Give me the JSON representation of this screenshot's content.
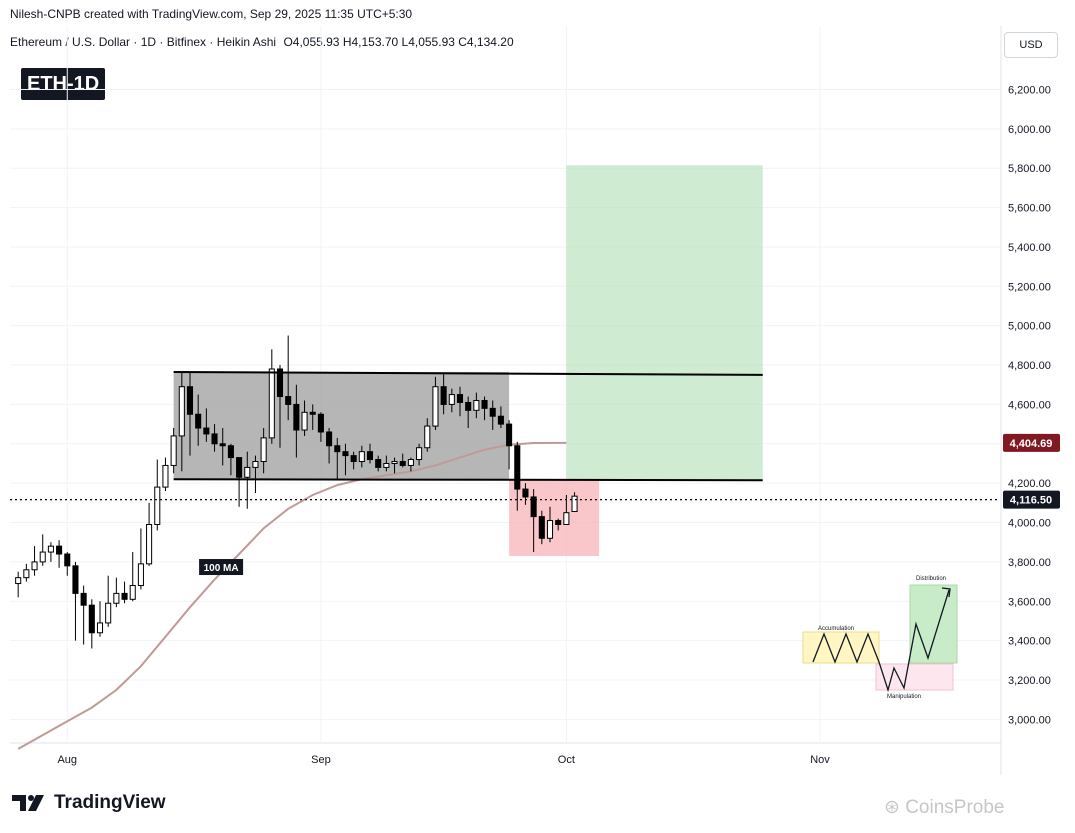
{
  "header": {
    "created_by": "Nilesh-CNPB created with TradingView.com, Sep 29, 2025 11:35 UTC+5:30",
    "symbol_line": "Ethereum / U.S. Dollar · 1D · Bitfinex · Heikin Ashi",
    "ohlc": "O4,055.93 H4,153.70 L4,055.93 C4,134.20",
    "currency_button": "USD",
    "chart_tag": "ETH-1D"
  },
  "footer": {
    "brand": "TradingView",
    "watermark": "CoinsProbe"
  },
  "colors": {
    "up": "#ffffff",
    "down": "#000000",
    "range_box": "#9e9e9e",
    "target_zone": "#b5e0b8",
    "stop_zone": "#f7b3b8",
    "ma_line": "#c09a96",
    "ma_label": "#801922"
  },
  "chart_data": {
    "type": "candlestick",
    "title": "",
    "xlabel": "",
    "ylabel": "",
    "ylim": [
      2880,
      6370
    ],
    "y_ticks": [
      3000,
      3200,
      3400,
      3600,
      3800,
      4000,
      4200,
      4400,
      4600,
      4800,
      5000,
      5200,
      5400,
      5600,
      5800,
      6000,
      6200
    ],
    "y_tick_labels": [
      "3,000.00",
      "3,200.00",
      "3,400.00",
      "3,600.00",
      "3,800.00",
      "4,000.00",
      "4,200.00",
      "4,400.00",
      "4,600.00",
      "4,800.00",
      "5,000.00",
      "5,200.00",
      "5,400.00",
      "5,600.00",
      "5,800.00",
      "6,000.00",
      "6,200.00"
    ],
    "x_ticks": [
      {
        "label": "Aug",
        "day": 0
      },
      {
        "label": "Sep",
        "day": 31
      },
      {
        "label": "Oct",
        "day": 61
      },
      {
        "label": "Nov",
        "day": 92
      }
    ],
    "x_range_days": [
      -7,
      114
    ],
    "last_price": 4116.5,
    "last_price_label": "4,116.50",
    "ma_value": 4404.69,
    "ma_value_label": "4,404.69",
    "ma_name": "100 MA",
    "candles": [
      {
        "d": -6,
        "o": 3690,
        "c": 3720,
        "h": 3750,
        "l": 3620
      },
      {
        "d": -5,
        "o": 3720,
        "c": 3760,
        "h": 3790,
        "l": 3700
      },
      {
        "d": -4,
        "o": 3760,
        "c": 3800,
        "h": 3880,
        "l": 3730
      },
      {
        "d": -3,
        "o": 3800,
        "c": 3850,
        "h": 3940,
        "l": 3780
      },
      {
        "d": -2,
        "o": 3850,
        "c": 3880,
        "h": 3900,
        "l": 3800
      },
      {
        "d": -1,
        "o": 3880,
        "c": 3840,
        "h": 3910,
        "l": 3770
      },
      {
        "d": 0,
        "o": 3840,
        "c": 3780,
        "h": 3850,
        "l": 3730
      },
      {
        "d": 1,
        "o": 3780,
        "c": 3640,
        "h": 3800,
        "l": 3400
      },
      {
        "d": 2,
        "o": 3640,
        "c": 3580,
        "h": 3680,
        "l": 3380
      },
      {
        "d": 3,
        "o": 3580,
        "c": 3440,
        "h": 3610,
        "l": 3360
      },
      {
        "d": 4,
        "o": 3440,
        "c": 3490,
        "h": 3600,
        "l": 3420
      },
      {
        "d": 5,
        "o": 3490,
        "c": 3590,
        "h": 3730,
        "l": 3470
      },
      {
        "d": 6,
        "o": 3590,
        "c": 3640,
        "h": 3720,
        "l": 3570
      },
      {
        "d": 7,
        "o": 3640,
        "c": 3610,
        "h": 3700,
        "l": 3590
      },
      {
        "d": 8,
        "o": 3610,
        "c": 3680,
        "h": 3850,
        "l": 3600
      },
      {
        "d": 9,
        "o": 3680,
        "c": 3790,
        "h": 3970,
        "l": 3660
      },
      {
        "d": 10,
        "o": 3790,
        "c": 3990,
        "h": 4100,
        "l": 3780
      },
      {
        "d": 11,
        "o": 3990,
        "c": 4180,
        "h": 4320,
        "l": 3960
      },
      {
        "d": 12,
        "o": 4180,
        "c": 4290,
        "h": 4330,
        "l": 4160
      },
      {
        "d": 13,
        "o": 4290,
        "c": 4440,
        "h": 4480,
        "l": 4250
      },
      {
        "d": 14,
        "o": 4440,
        "c": 4690,
        "h": 4770,
        "l": 4260
      },
      {
        "d": 15,
        "o": 4690,
        "c": 4550,
        "h": 4760,
        "l": 4340
      },
      {
        "d": 16,
        "o": 4550,
        "c": 4480,
        "h": 4650,
        "l": 4390
      },
      {
        "d": 17,
        "o": 4480,
        "c": 4450,
        "h": 4580,
        "l": 4410
      },
      {
        "d": 18,
        "o": 4450,
        "c": 4400,
        "h": 4500,
        "l": 4360
      },
      {
        "d": 19,
        "o": 4400,
        "c": 4390,
        "h": 4480,
        "l": 4290
      },
      {
        "d": 20,
        "o": 4390,
        "c": 4330,
        "h": 4400,
        "l": 4240
      },
      {
        "d": 21,
        "o": 4330,
        "c": 4230,
        "h": 4330,
        "l": 4080
      },
      {
        "d": 22,
        "o": 4230,
        "c": 4280,
        "h": 4360,
        "l": 4070
      },
      {
        "d": 23,
        "o": 4280,
        "c": 4310,
        "h": 4340,
        "l": 4150
      },
      {
        "d": 24,
        "o": 4310,
        "c": 4430,
        "h": 4480,
        "l": 4250
      },
      {
        "d": 25,
        "o": 4430,
        "c": 4780,
        "h": 4880,
        "l": 4400
      },
      {
        "d": 26,
        "o": 4780,
        "c": 4640,
        "h": 4800,
        "l": 4380
      },
      {
        "d": 27,
        "o": 4640,
        "c": 4600,
        "h": 4950,
        "l": 4520
      },
      {
        "d": 28,
        "o": 4600,
        "c": 4470,
        "h": 4700,
        "l": 4330
      },
      {
        "d": 29,
        "o": 4470,
        "c": 4560,
        "h": 4620,
        "l": 4440
      },
      {
        "d": 30,
        "o": 4560,
        "c": 4550,
        "h": 4600,
        "l": 4470
      },
      {
        "d": 31,
        "o": 4550,
        "c": 4460,
        "h": 4560,
        "l": 4410
      },
      {
        "d": 32,
        "o": 4460,
        "c": 4390,
        "h": 4480,
        "l": 4300
      },
      {
        "d": 33,
        "o": 4390,
        "c": 4360,
        "h": 4430,
        "l": 4220
      },
      {
        "d": 34,
        "o": 4360,
        "c": 4340,
        "h": 4400,
        "l": 4240
      },
      {
        "d": 35,
        "o": 4340,
        "c": 4310,
        "h": 4360,
        "l": 4270
      },
      {
        "d": 36,
        "o": 4310,
        "c": 4360,
        "h": 4390,
        "l": 4280
      },
      {
        "d": 37,
        "o": 4360,
        "c": 4320,
        "h": 4400,
        "l": 4300
      },
      {
        "d": 38,
        "o": 4320,
        "c": 4280,
        "h": 4340,
        "l": 4260
      },
      {
        "d": 39,
        "o": 4280,
        "c": 4300,
        "h": 4340,
        "l": 4260
      },
      {
        "d": 40,
        "o": 4300,
        "c": 4310,
        "h": 4330,
        "l": 4250
      },
      {
        "d": 41,
        "o": 4310,
        "c": 4290,
        "h": 4350,
        "l": 4280
      },
      {
        "d": 42,
        "o": 4290,
        "c": 4320,
        "h": 4330,
        "l": 4260
      },
      {
        "d": 43,
        "o": 4320,
        "c": 4380,
        "h": 4400,
        "l": 4290
      },
      {
        "d": 44,
        "o": 4380,
        "c": 4490,
        "h": 4530,
        "l": 4360
      },
      {
        "d": 45,
        "o": 4490,
        "c": 4690,
        "h": 4740,
        "l": 4470
      },
      {
        "d": 46,
        "o": 4690,
        "c": 4600,
        "h": 4760,
        "l": 4550
      },
      {
        "d": 47,
        "o": 4600,
        "c": 4650,
        "h": 4680,
        "l": 4560
      },
      {
        "d": 48,
        "o": 4650,
        "c": 4610,
        "h": 4690,
        "l": 4540
      },
      {
        "d": 49,
        "o": 4610,
        "c": 4570,
        "h": 4640,
        "l": 4480
      },
      {
        "d": 50,
        "o": 4570,
        "c": 4620,
        "h": 4660,
        "l": 4530
      },
      {
        "d": 51,
        "o": 4620,
        "c": 4580,
        "h": 4640,
        "l": 4520
      },
      {
        "d": 52,
        "o": 4580,
        "c": 4540,
        "h": 4620,
        "l": 4470
      },
      {
        "d": 53,
        "o": 4540,
        "c": 4500,
        "h": 4590,
        "l": 4480
      },
      {
        "d": 54,
        "o": 4500,
        "c": 4390,
        "h": 4520,
        "l": 4270
      },
      {
        "d": 55,
        "o": 4390,
        "c": 4170,
        "h": 4410,
        "l": 4060
      },
      {
        "d": 56,
        "o": 4170,
        "c": 4130,
        "h": 4200,
        "l": 4090
      },
      {
        "d": 57,
        "o": 4130,
        "c": 4030,
        "h": 4170,
        "l": 3850
      },
      {
        "d": 58,
        "o": 4030,
        "c": 3920,
        "h": 4060,
        "l": 3890
      },
      {
        "d": 59,
        "o": 3920,
        "c": 4010,
        "h": 4080,
        "l": 3900
      },
      {
        "d": 60,
        "o": 4010,
        "c": 3990,
        "h": 4020,
        "l": 3960
      },
      {
        "d": 61,
        "o": 3990,
        "c": 4050,
        "h": 4140,
        "l": 3990
      },
      {
        "d": 62,
        "o": 4056,
        "c": 4134,
        "h": 4154,
        "l": 4056
      }
    ],
    "ma_points": [
      [
        -6,
        2850
      ],
      [
        -3,
        2920
      ],
      [
        0,
        2990
      ],
      [
        3,
        3060
      ],
      [
        6,
        3150
      ],
      [
        9,
        3270
      ],
      [
        12,
        3420
      ],
      [
        15,
        3570
      ],
      [
        18,
        3710
      ],
      [
        21,
        3840
      ],
      [
        24,
        3970
      ],
      [
        27,
        4070
      ],
      [
        30,
        4140
      ],
      [
        33,
        4190
      ],
      [
        36,
        4220
      ],
      [
        39,
        4240
      ],
      [
        42,
        4260
      ],
      [
        45,
        4290
      ],
      [
        48,
        4330
      ],
      [
        51,
        4370
      ],
      [
        54,
        4395
      ],
      [
        57,
        4404
      ],
      [
        61,
        4404.69
      ]
    ],
    "range_box": {
      "d0": 13,
      "d1": 54,
      "top": 4765,
      "bottom": 4220
    },
    "resistance_line": {
      "d0": 13,
      "d1": 85,
      "v0": 4765,
      "v1": 4750
    },
    "support_line": {
      "d0": 13,
      "d1": 85,
      "v0": 4220,
      "v1": 4215
    },
    "stop_zone": {
      "d0": 54,
      "d1": 65,
      "top": 4215,
      "bottom": 3830
    },
    "target_zone": {
      "d0": 61,
      "d1": 85,
      "top": 5815,
      "bottom": 4215
    },
    "inset": {
      "labels": [
        "Accumulation",
        "Manipulation",
        "Distribution"
      ]
    }
  }
}
